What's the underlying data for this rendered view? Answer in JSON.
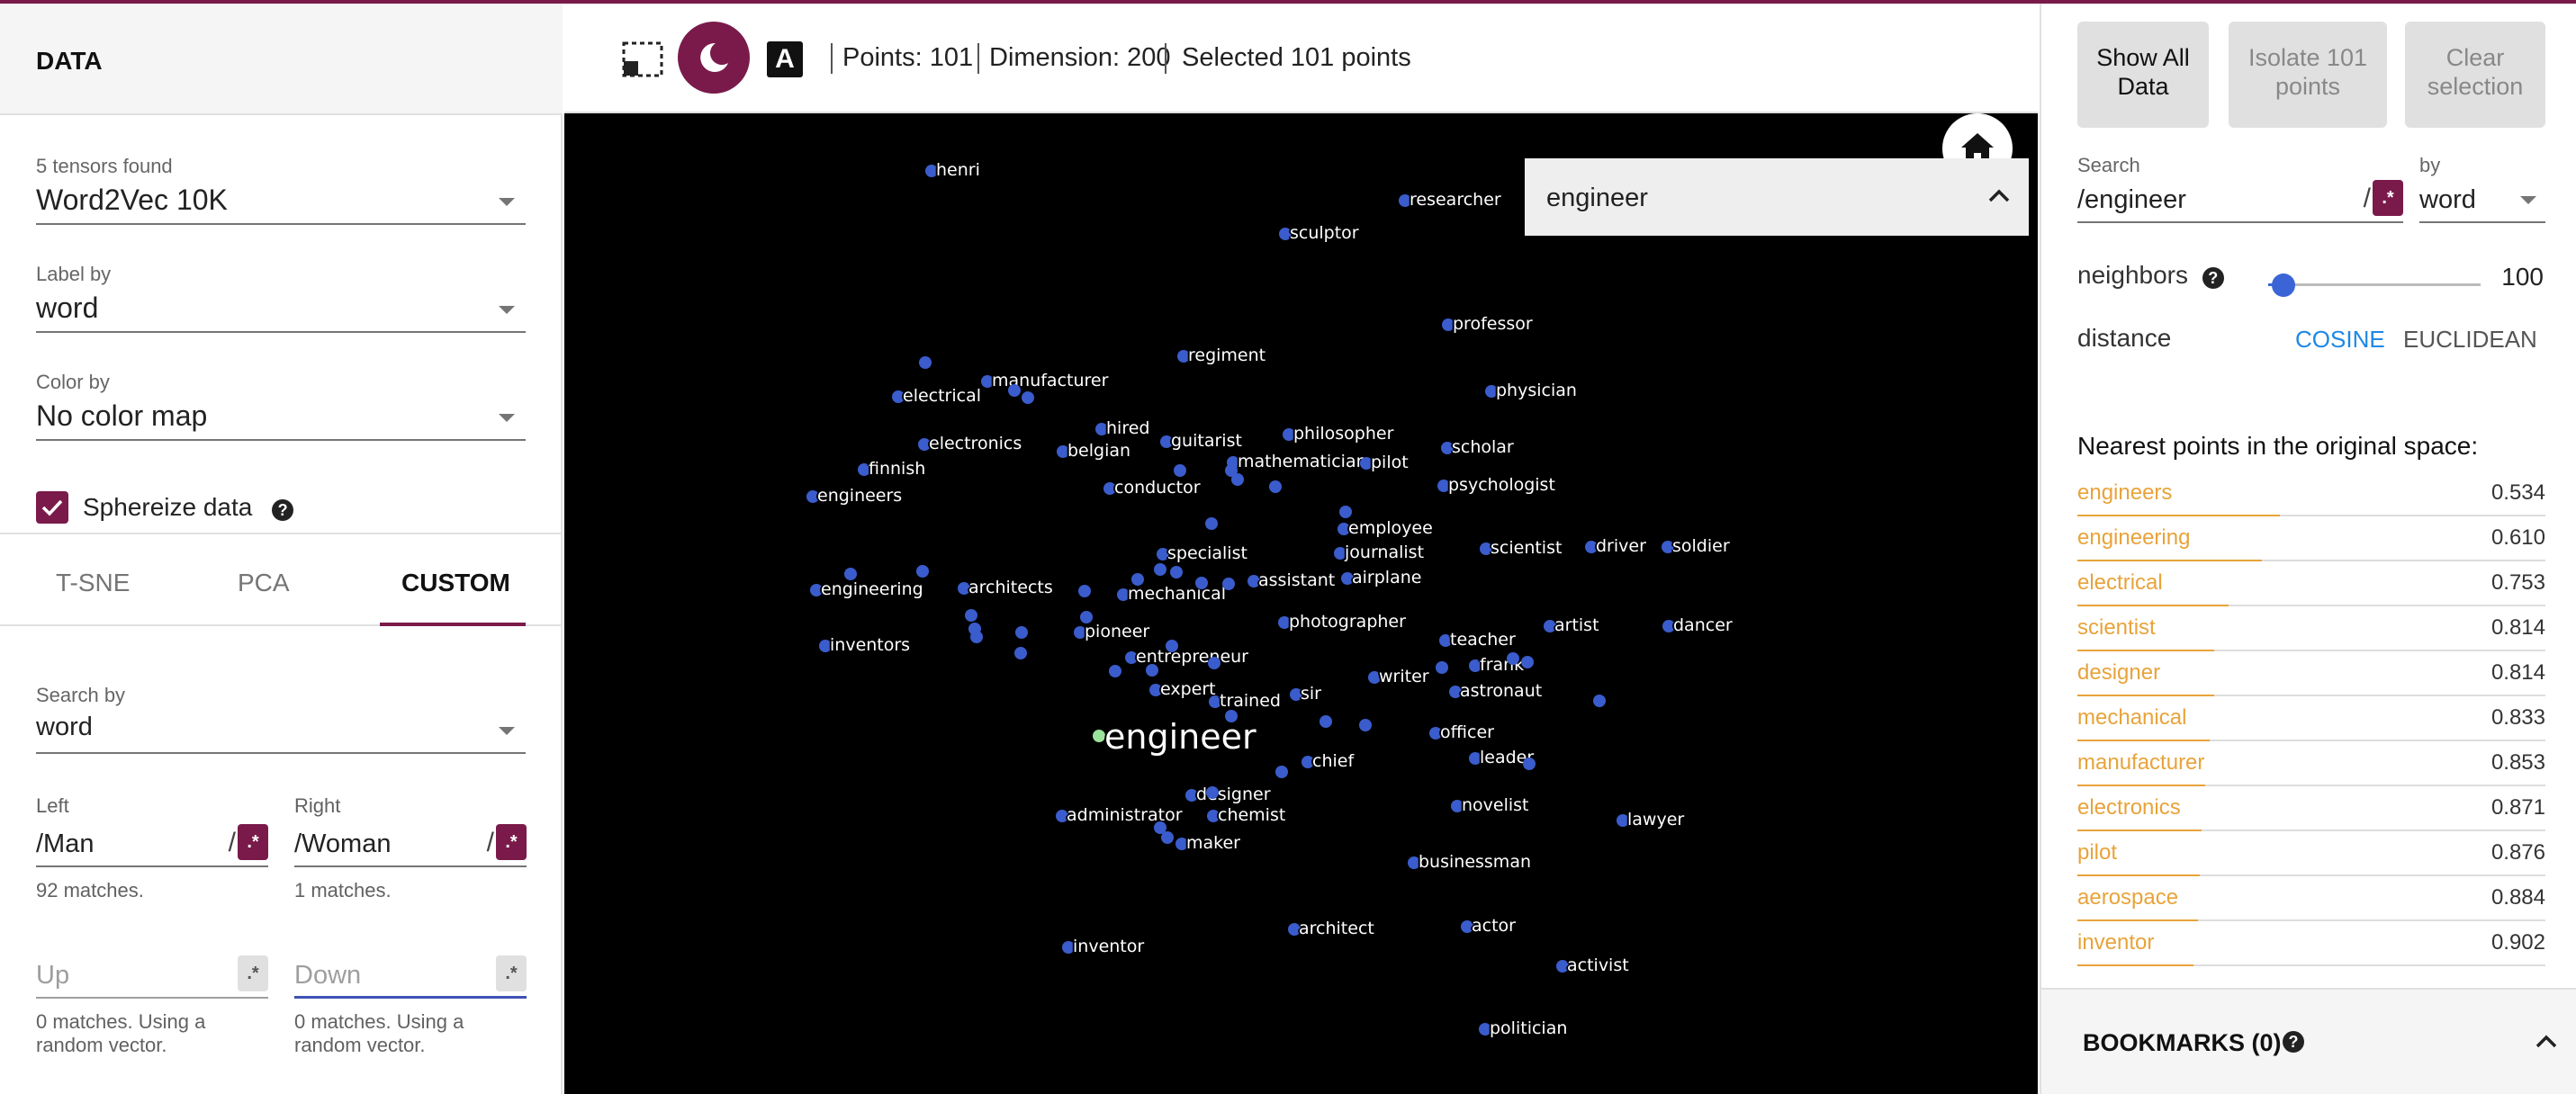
{
  "left_panel": {
    "header": "DATA",
    "tensors_found": "5 tensors found",
    "tensor_selected": "Word2Vec 10K",
    "label_by_label": "Label by",
    "label_by_value": "word",
    "color_by_label": "Color by",
    "color_by_value": "No color map",
    "sphereize_label": "Sphereize data",
    "tabs": [
      "T-SNE",
      "PCA",
      "CUSTOM"
    ],
    "search_by_label": "Search by",
    "search_by_value": "word",
    "left_label": "Left",
    "left_value": "/Man",
    "left_matches": "92 matches.",
    "right_label": "Right",
    "right_value": "/Woman",
    "right_matches": "1 matches.",
    "up_placeholder": "Up",
    "up_info_1": "0 matches. Using a",
    "up_info_2": "random vector.",
    "down_placeholder": "Down",
    "down_info_1": "0 matches. Using a",
    "down_info_2": "random vector.",
    "regex_symbol": ".*"
  },
  "toolbar": {
    "night_mode_letter": "A",
    "points": "Points: 101",
    "dimension": "Dimension: 200",
    "selected": "Selected 101 points"
  },
  "canvas": {
    "search_combo_value": "engineer",
    "focus_word": "engineer",
    "labeled_points": [
      "henri",
      "researcher",
      "sculptor",
      "professor",
      "regiment",
      "manufacturer",
      "electrical",
      "physician",
      "hired",
      "guitarist",
      "philosopher",
      "electronics",
      "belgian",
      "scholar",
      "finnish",
      "mathematician",
      "pilot",
      "conductor",
      "psychologist",
      "engineers",
      "employee",
      "specialist",
      "journalist",
      "scientist",
      "driver",
      "soldier",
      "engineering",
      "architects",
      "mechanical",
      "assistant",
      "airplane",
      "pioneer",
      "photographer",
      "teacher",
      "artist",
      "dancer",
      "inventors",
      "entrepreneur",
      "frank",
      "writer",
      "expert",
      "trained",
      "sir",
      "astronaut",
      "officer",
      "chief",
      "leader",
      "designer",
      "novelist",
      "administrator",
      "chemist",
      "lawyer",
      "maker",
      "businessman",
      "architect",
      "actor",
      "inventor",
      "activist",
      "politician"
    ]
  },
  "right_panel": {
    "show_all_1": "Show All",
    "show_all_2": "Data",
    "isolate_1": "Isolate 101",
    "isolate_2": "points",
    "clear_1": "Clear",
    "clear_2": "selection",
    "search_label": "Search",
    "search_value": "/engineer",
    "by_label": "by",
    "by_value": "word",
    "neighbors_label": "neighbors",
    "neighbors_value": "100",
    "neighbors_fraction": 0.02,
    "distance_label": "distance",
    "cosine": "COSINE",
    "euclidean": "EUCLIDEAN",
    "nearest_title": "Nearest points in the original space:",
    "nearest": [
      {
        "word": "engineers",
        "dist": "0.534"
      },
      {
        "word": "engineering",
        "dist": "0.610"
      },
      {
        "word": "electrical",
        "dist": "0.753"
      },
      {
        "word": "scientist",
        "dist": "0.814"
      },
      {
        "word": "designer",
        "dist": "0.814"
      },
      {
        "word": "mechanical",
        "dist": "0.833"
      },
      {
        "word": "manufacturer",
        "dist": "0.853"
      },
      {
        "word": "electronics",
        "dist": "0.871"
      },
      {
        "word": "pilot",
        "dist": "0.876"
      },
      {
        "word": "aerospace",
        "dist": "0.884"
      },
      {
        "word": "inventor",
        "dist": "0.902"
      }
    ],
    "bookmarks": "BOOKMARKS (0)"
  },
  "colors": {
    "accent": "#7a1a4a",
    "point": "#3a5ccc",
    "focus_point": "#9be39b",
    "neighbor_text": "#e8a33a",
    "link_blue": "#1e88e5"
  }
}
